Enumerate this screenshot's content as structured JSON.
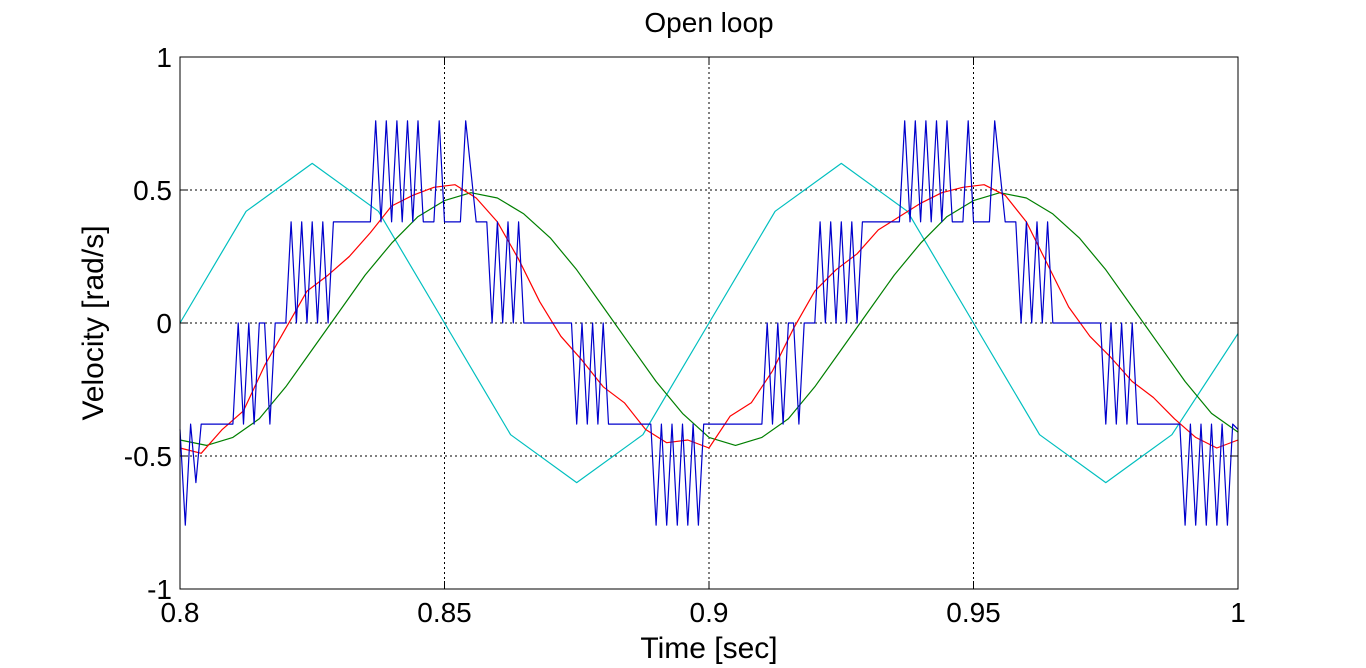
{
  "chart_data": {
    "type": "line",
    "title": "Open loop",
    "xlabel": "Time [sec]",
    "ylabel": "Velocity [rad/s]",
    "xlim": [
      0.8,
      1.0
    ],
    "ylim": [
      -1,
      1
    ],
    "xticks": [
      0.8,
      0.85,
      0.9,
      0.95,
      1.0
    ],
    "xtick_labels": [
      "0.8",
      "0.85",
      "0.9",
      "0.95",
      "1"
    ],
    "yticks": [
      -1,
      -0.5,
      0,
      0.5,
      1
    ],
    "ytick_labels": [
      "-1",
      "-0.5",
      "0",
      "0.5",
      "1"
    ],
    "grid": true,
    "series": [
      {
        "color": "#00BFBF",
        "x": [
          0.8,
          0.8125,
          0.825,
          0.8375,
          0.85,
          0.8625,
          0.875,
          0.8875,
          0.9,
          0.9125,
          0.925,
          0.9375,
          0.95,
          0.9625,
          0.975,
          0.9875,
          1.0
        ],
        "y": [
          0.0,
          0.42,
          0.6,
          0.42,
          0.0,
          -0.42,
          -0.6,
          -0.42,
          0.0,
          0.42,
          0.6,
          0.42,
          0.0,
          -0.42,
          -0.6,
          -0.42,
          -0.04
        ]
      },
      {
        "color": "#007F00",
        "x": [
          0.8,
          0.805,
          0.81,
          0.815,
          0.82,
          0.825,
          0.83,
          0.835,
          0.84,
          0.845,
          0.85,
          0.855,
          0.86,
          0.865,
          0.87,
          0.875,
          0.88,
          0.885,
          0.89,
          0.895,
          0.9,
          0.905,
          0.91,
          0.915,
          0.92,
          0.925,
          0.93,
          0.935,
          0.94,
          0.945,
          0.95,
          0.955,
          0.96,
          0.965,
          0.97,
          0.975,
          0.98,
          0.985,
          0.99,
          0.995,
          1.0
        ],
        "y": [
          -0.44,
          -0.46,
          -0.43,
          -0.36,
          -0.24,
          -0.1,
          0.04,
          0.18,
          0.3,
          0.4,
          0.46,
          0.49,
          0.47,
          0.41,
          0.32,
          0.2,
          0.06,
          -0.08,
          -0.22,
          -0.34,
          -0.43,
          -0.46,
          -0.43,
          -0.36,
          -0.24,
          -0.1,
          0.04,
          0.18,
          0.3,
          0.4,
          0.46,
          0.49,
          0.47,
          0.41,
          0.32,
          0.2,
          0.06,
          -0.08,
          -0.22,
          -0.34,
          -0.41
        ]
      },
      {
        "color": "#FF0000",
        "x": [
          0.8,
          0.804,
          0.808,
          0.812,
          0.816,
          0.82,
          0.824,
          0.828,
          0.832,
          0.836,
          0.84,
          0.844,
          0.848,
          0.852,
          0.856,
          0.86,
          0.864,
          0.868,
          0.872,
          0.876,
          0.88,
          0.884,
          0.888,
          0.892,
          0.896,
          0.9,
          0.904,
          0.908,
          0.912,
          0.916,
          0.92,
          0.924,
          0.928,
          0.932,
          0.936,
          0.94,
          0.944,
          0.948,
          0.952,
          0.956,
          0.96,
          0.964,
          0.968,
          0.972,
          0.976,
          0.98,
          0.984,
          0.988,
          0.992,
          0.996,
          1.0
        ],
        "y": [
          -0.47,
          -0.49,
          -0.4,
          -0.33,
          -0.16,
          -0.02,
          0.12,
          0.18,
          0.25,
          0.34,
          0.44,
          0.48,
          0.51,
          0.52,
          0.47,
          0.38,
          0.24,
          0.08,
          -0.05,
          -0.14,
          -0.24,
          -0.3,
          -0.4,
          -0.45,
          -0.44,
          -0.47,
          -0.35,
          -0.3,
          -0.18,
          -0.02,
          0.12,
          0.2,
          0.26,
          0.35,
          0.4,
          0.45,
          0.49,
          0.51,
          0.52,
          0.48,
          0.38,
          0.22,
          0.06,
          -0.05,
          -0.13,
          -0.22,
          -0.28,
          -0.36,
          -0.43,
          -0.47,
          -0.44
        ]
      },
      {
        "color": "#0000CC",
        "x": [
          0.8,
          0.801,
          0.802,
          0.803,
          0.804,
          0.806,
          0.808,
          0.81,
          0.811,
          0.812,
          0.813,
          0.814,
          0.815,
          0.816,
          0.817,
          0.818,
          0.819,
          0.82,
          0.821,
          0.822,
          0.823,
          0.824,
          0.825,
          0.826,
          0.827,
          0.828,
          0.829,
          0.83,
          0.831,
          0.832,
          0.834,
          0.836,
          0.837,
          0.838,
          0.839,
          0.84,
          0.841,
          0.842,
          0.843,
          0.844,
          0.845,
          0.846,
          0.847,
          0.848,
          0.849,
          0.85,
          0.851,
          0.852,
          0.853,
          0.854,
          0.856,
          0.858,
          0.859,
          0.86,
          0.861,
          0.862,
          0.863,
          0.864,
          0.865,
          0.866,
          0.867,
          0.868,
          0.869,
          0.87,
          0.872,
          0.874,
          0.875,
          0.876,
          0.877,
          0.878,
          0.879,
          0.88,
          0.881,
          0.882,
          0.883,
          0.884,
          0.885,
          0.886,
          0.888,
          0.889,
          0.89,
          0.891,
          0.892,
          0.893,
          0.894,
          0.895,
          0.896,
          0.897,
          0.898,
          0.899,
          0.9,
          0.901,
          0.902,
          0.903,
          0.904,
          0.906,
          0.908,
          0.91,
          0.911,
          0.912,
          0.913,
          0.914,
          0.915,
          0.916,
          0.917,
          0.918,
          0.919,
          0.92,
          0.921,
          0.922,
          0.923,
          0.924,
          0.925,
          0.926,
          0.927,
          0.928,
          0.929,
          0.93,
          0.931,
          0.932,
          0.934,
          0.936,
          0.937,
          0.938,
          0.939,
          0.94,
          0.941,
          0.942,
          0.943,
          0.944,
          0.945,
          0.946,
          0.947,
          0.948,
          0.949,
          0.95,
          0.951,
          0.952,
          0.953,
          0.954,
          0.956,
          0.958,
          0.959,
          0.96,
          0.961,
          0.962,
          0.963,
          0.964,
          0.965,
          0.966,
          0.967,
          0.968,
          0.969,
          0.97,
          0.972,
          0.974,
          0.975,
          0.976,
          0.977,
          0.978,
          0.979,
          0.98,
          0.981,
          0.982,
          0.983,
          0.984,
          0.985,
          0.986,
          0.988,
          0.989,
          0.99,
          0.991,
          0.992,
          0.993,
          0.994,
          0.995,
          0.996,
          0.997,
          0.998,
          0.999,
          1.0
        ],
        "y": [
          -0.4,
          -0.76,
          -0.38,
          -0.6,
          -0.38,
          -0.38,
          -0.38,
          -0.38,
          0.0,
          -0.38,
          0.0,
          -0.38,
          0.0,
          0.0,
          -0.38,
          0.0,
          0.0,
          0.0,
          0.38,
          0.0,
          0.38,
          0.0,
          0.38,
          0.0,
          0.38,
          0.0,
          0.38,
          0.38,
          0.38,
          0.38,
          0.38,
          0.38,
          0.76,
          0.38,
          0.76,
          0.38,
          0.76,
          0.38,
          0.76,
          0.38,
          0.76,
          0.38,
          0.38,
          0.38,
          0.76,
          0.38,
          0.38,
          0.38,
          0.38,
          0.76,
          0.38,
          0.38,
          0.0,
          0.38,
          0.0,
          0.38,
          0.0,
          0.38,
          0.0,
          0.0,
          0.0,
          0.0,
          0.0,
          0.0,
          0.0,
          0.0,
          -0.38,
          0.0,
          -0.38,
          0.0,
          -0.38,
          0.0,
          -0.38,
          -0.38,
          -0.38,
          -0.38,
          -0.38,
          -0.38,
          -0.38,
          -0.38,
          -0.76,
          -0.38,
          -0.76,
          -0.38,
          -0.76,
          -0.38,
          -0.76,
          -0.38,
          -0.76,
          -0.38,
          -0.38,
          -0.38,
          -0.38,
          -0.38,
          -0.38,
          -0.38,
          -0.38,
          -0.38,
          0.0,
          -0.38,
          0.0,
          -0.38,
          0.0,
          0.0,
          -0.38,
          0.0,
          0.0,
          0.0,
          0.38,
          0.0,
          0.38,
          0.0,
          0.38,
          0.0,
          0.38,
          0.0,
          0.38,
          0.38,
          0.38,
          0.38,
          0.38,
          0.38,
          0.76,
          0.38,
          0.76,
          0.38,
          0.76,
          0.38,
          0.76,
          0.38,
          0.76,
          0.38,
          0.38,
          0.38,
          0.76,
          0.38,
          0.38,
          0.38,
          0.38,
          0.76,
          0.38,
          0.38,
          0.0,
          0.38,
          0.0,
          0.38,
          0.0,
          0.38,
          0.0,
          0.0,
          0.0,
          0.0,
          0.0,
          0.0,
          0.0,
          0.0,
          -0.38,
          0.0,
          -0.38,
          0.0,
          -0.38,
          0.0,
          -0.38,
          -0.38,
          -0.38,
          -0.38,
          -0.38,
          -0.38,
          -0.38,
          -0.38,
          -0.76,
          -0.38,
          -0.76,
          -0.38,
          -0.76,
          -0.38,
          -0.76,
          -0.38,
          -0.76,
          -0.38,
          -0.4
        ]
      }
    ]
  }
}
